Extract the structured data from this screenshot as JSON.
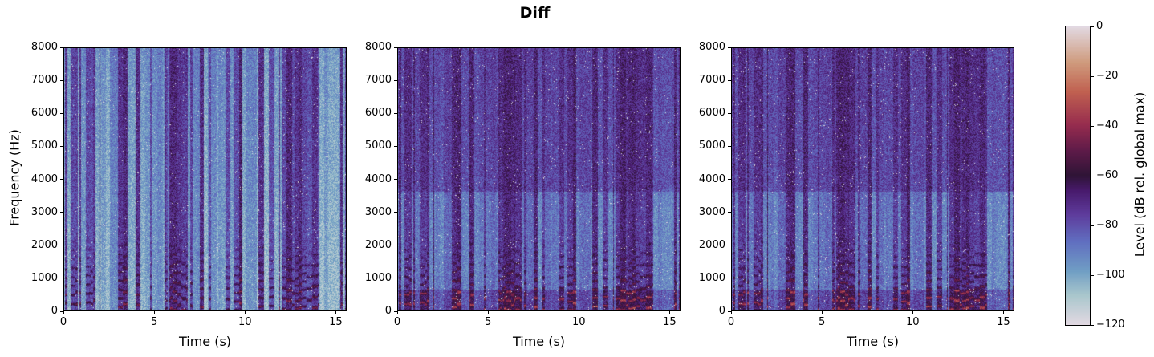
{
  "chart_data": {
    "type": "heatmap",
    "title": "Diff",
    "colormap": "twilight",
    "panels": [
      {
        "xlabel": "Time (s)",
        "ylabel": "Frequency (Hz)",
        "xlim": [
          0,
          15.6
        ],
        "ylim": [
          0,
          8000
        ],
        "xticks": [
          "0",
          "5",
          "10",
          "15"
        ],
        "yticks": [
          "0",
          "1000",
          "2000",
          "3000",
          "4000",
          "5000",
          "6000",
          "7000",
          "8000"
        ]
      },
      {
        "xlabel": "Time (s)",
        "ylabel": "",
        "xlim": [
          0,
          15.6
        ],
        "ylim": [
          0,
          8000
        ],
        "xticks": [
          "0",
          "5",
          "10",
          "15"
        ],
        "yticks": [
          "0",
          "1000",
          "2000",
          "3000",
          "4000",
          "5000",
          "6000",
          "7000",
          "8000"
        ]
      },
      {
        "xlabel": "Time (s)",
        "ylabel": "",
        "xlim": [
          0,
          15.6
        ],
        "ylim": [
          0,
          8000
        ],
        "xticks": [
          "0",
          "5",
          "10",
          "15"
        ],
        "yticks": [
          "0",
          "1000",
          "2000",
          "3000",
          "4000",
          "5000",
          "6000",
          "7000",
          "8000"
        ]
      }
    ],
    "colorbar": {
      "label": "Level (dB rel. global max)",
      "range": [
        -120,
        0
      ],
      "ticks": [
        "0",
        "−20",
        "−40",
        "−60",
        "−80",
        "−100",
        "−120"
      ]
    }
  }
}
